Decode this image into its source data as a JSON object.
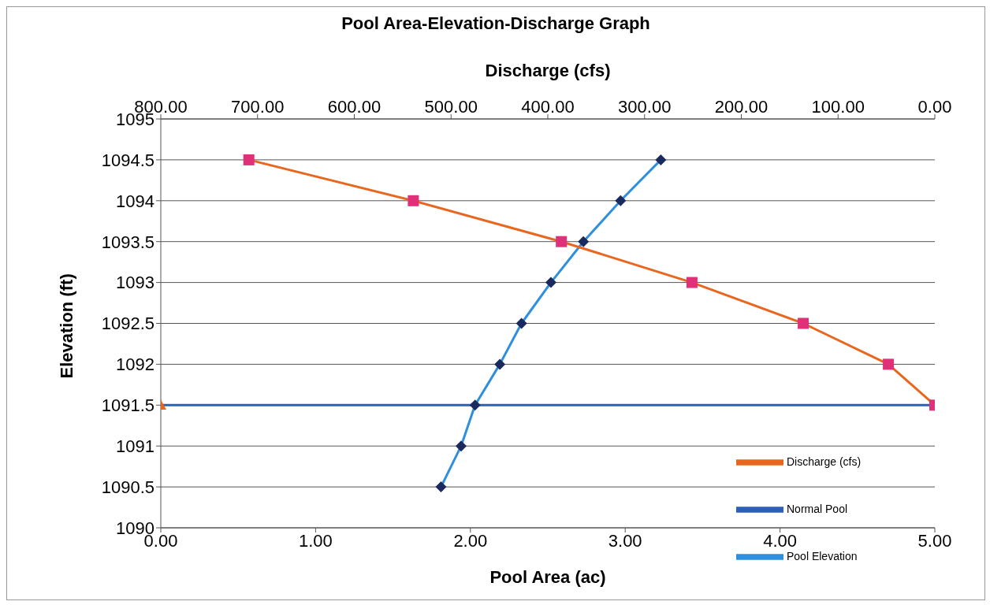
{
  "chart_data": {
    "type": "line",
    "title": "Pool Area-Elevation-Discharge Graph",
    "xlabel": "Pool Area (ac)",
    "x2label": "Discharge (cfs)",
    "ylabel": "Elevation (ft)",
    "xlim": [
      0,
      5
    ],
    "xticks": [
      {
        "value": 0,
        "label": "0.00"
      },
      {
        "value": 1,
        "label": "1.00"
      },
      {
        "value": 2,
        "label": "2.00"
      },
      {
        "value": 3,
        "label": "3.00"
      },
      {
        "value": 4,
        "label": "4.00"
      },
      {
        "value": 5,
        "label": "5.00"
      }
    ],
    "x2lim": [
      800,
      0
    ],
    "x2ticks": [
      {
        "value": 800,
        "label": "800.00"
      },
      {
        "value": 700,
        "label": "700.00"
      },
      {
        "value": 600,
        "label": "600.00"
      },
      {
        "value": 500,
        "label": "500.00"
      },
      {
        "value": 400,
        "label": "400.00"
      },
      {
        "value": 300,
        "label": "300.00"
      },
      {
        "value": 200,
        "label": "200.00"
      },
      {
        "value": 100,
        "label": "100.00"
      },
      {
        "value": 0,
        "label": "0.00"
      }
    ],
    "ylim": [
      1090,
      1095
    ],
    "yticks": [
      1090,
      1090.5,
      1091,
      1091.5,
      1092,
      1092.5,
      1093,
      1093.5,
      1094,
      1094.5,
      1095
    ],
    "grid": "y",
    "legend": "bottom right",
    "series": [
      {
        "name": "Normal Pool",
        "color": "#2e5fb8",
        "marker": "triangle",
        "x": [
          0,
          5
        ],
        "values": [
          1091.5,
          1091.5
        ]
      },
      {
        "name": "Pool Elevation",
        "color": "#2f8fdf",
        "marker": "diamond",
        "x": [
          1.81,
          1.94,
          2.03,
          2.19,
          2.33,
          2.52,
          2.73,
          2.97,
          3.23
        ],
        "values": [
          1090.5,
          1091,
          1091.5,
          1092,
          1092.5,
          1093,
          1093.5,
          1094,
          1094.5
        ]
      },
      {
        "name": "Discharge (cfs)",
        "color": "#e8661e",
        "marker": "square",
        "axis": "x2",
        "x": [
          709,
          539,
          386,
          251,
          136,
          48,
          0
        ],
        "values": [
          1094.5,
          1094,
          1093.5,
          1093,
          1092.5,
          1092,
          1091.5
        ]
      }
    ]
  }
}
